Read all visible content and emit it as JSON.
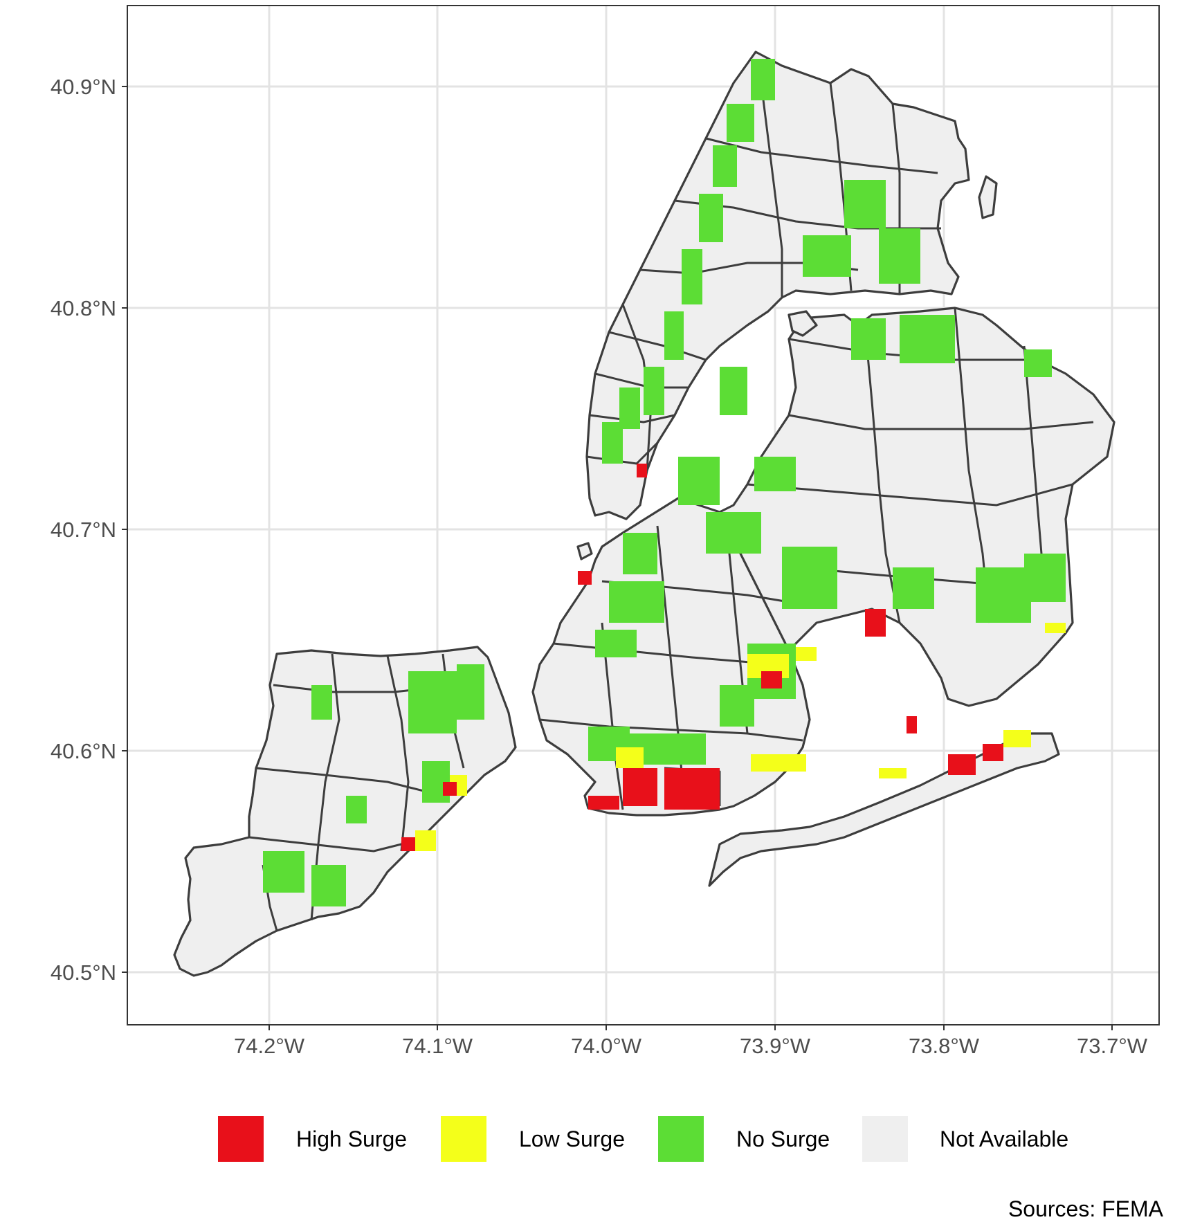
{
  "map": {
    "lat_ticks": [
      "40.9°N",
      "40.8°N",
      "40.7°N",
      "40.6°N",
      "40.5°N"
    ],
    "lon_ticks": [
      "74.2°W",
      "74.1°W",
      "74.0°W",
      "73.9°W",
      "73.8°W",
      "73.7°W"
    ],
    "caption": "Sources: FEMA",
    "grid": true
  },
  "legend": {
    "placement": "bottom",
    "items": [
      {
        "label": "High Surge",
        "color": "#e8101a"
      },
      {
        "label": "Low Surge",
        "color": "#f4ff1a"
      },
      {
        "label": "No Surge",
        "color": "#5cdd35"
      },
      {
        "label": "Not Available",
        "color": "#efefef"
      }
    ]
  },
  "colors": {
    "boundary": "#3d3d3d",
    "grid": "#e3e3e3",
    "panel_border": "#333333"
  }
}
